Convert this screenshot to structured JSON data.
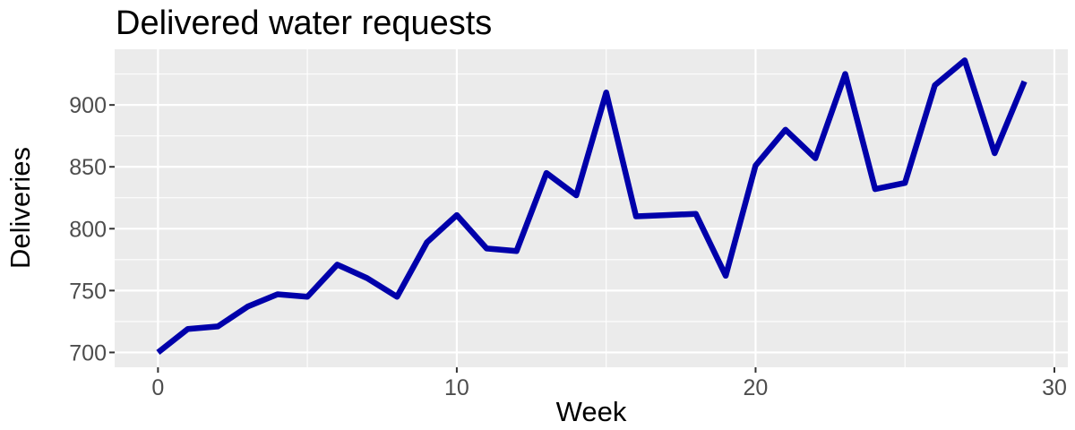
{
  "chart_data": {
    "type": "line",
    "title": "Delivered water requests",
    "xlabel": "Week",
    "ylabel": "Deliveries",
    "xlim": [
      -1.45,
      30.45
    ],
    "ylim": [
      688,
      945
    ],
    "x_ticks": [
      0,
      10,
      20,
      30
    ],
    "x_minor_ticks": [
      5,
      15,
      25
    ],
    "y_ticks": [
      700,
      750,
      800,
      850,
      900
    ],
    "y_minor_ticks": [
      725,
      775,
      825,
      875,
      925
    ],
    "grid": true,
    "colors": {
      "line": "#0000aa",
      "panel": "#ebebeb",
      "grid": "#ffffff",
      "tick_text": "#4d4d4d"
    },
    "series": [
      {
        "x": [
          0,
          1,
          2,
          3,
          4,
          5,
          6,
          7,
          8,
          9,
          10,
          11,
          12,
          13,
          14,
          15,
          16,
          17,
          18,
          19,
          20,
          21,
          22,
          23,
          24,
          25,
          26,
          27,
          28,
          29
        ],
        "values": [
          700,
          719,
          721,
          737,
          747,
          745,
          771,
          760,
          745,
          789,
          811,
          784,
          782,
          845,
          827,
          910,
          810,
          811,
          812,
          762,
          851,
          880,
          857,
          925,
          832,
          837,
          916,
          936,
          861,
          919
        ]
      }
    ]
  }
}
